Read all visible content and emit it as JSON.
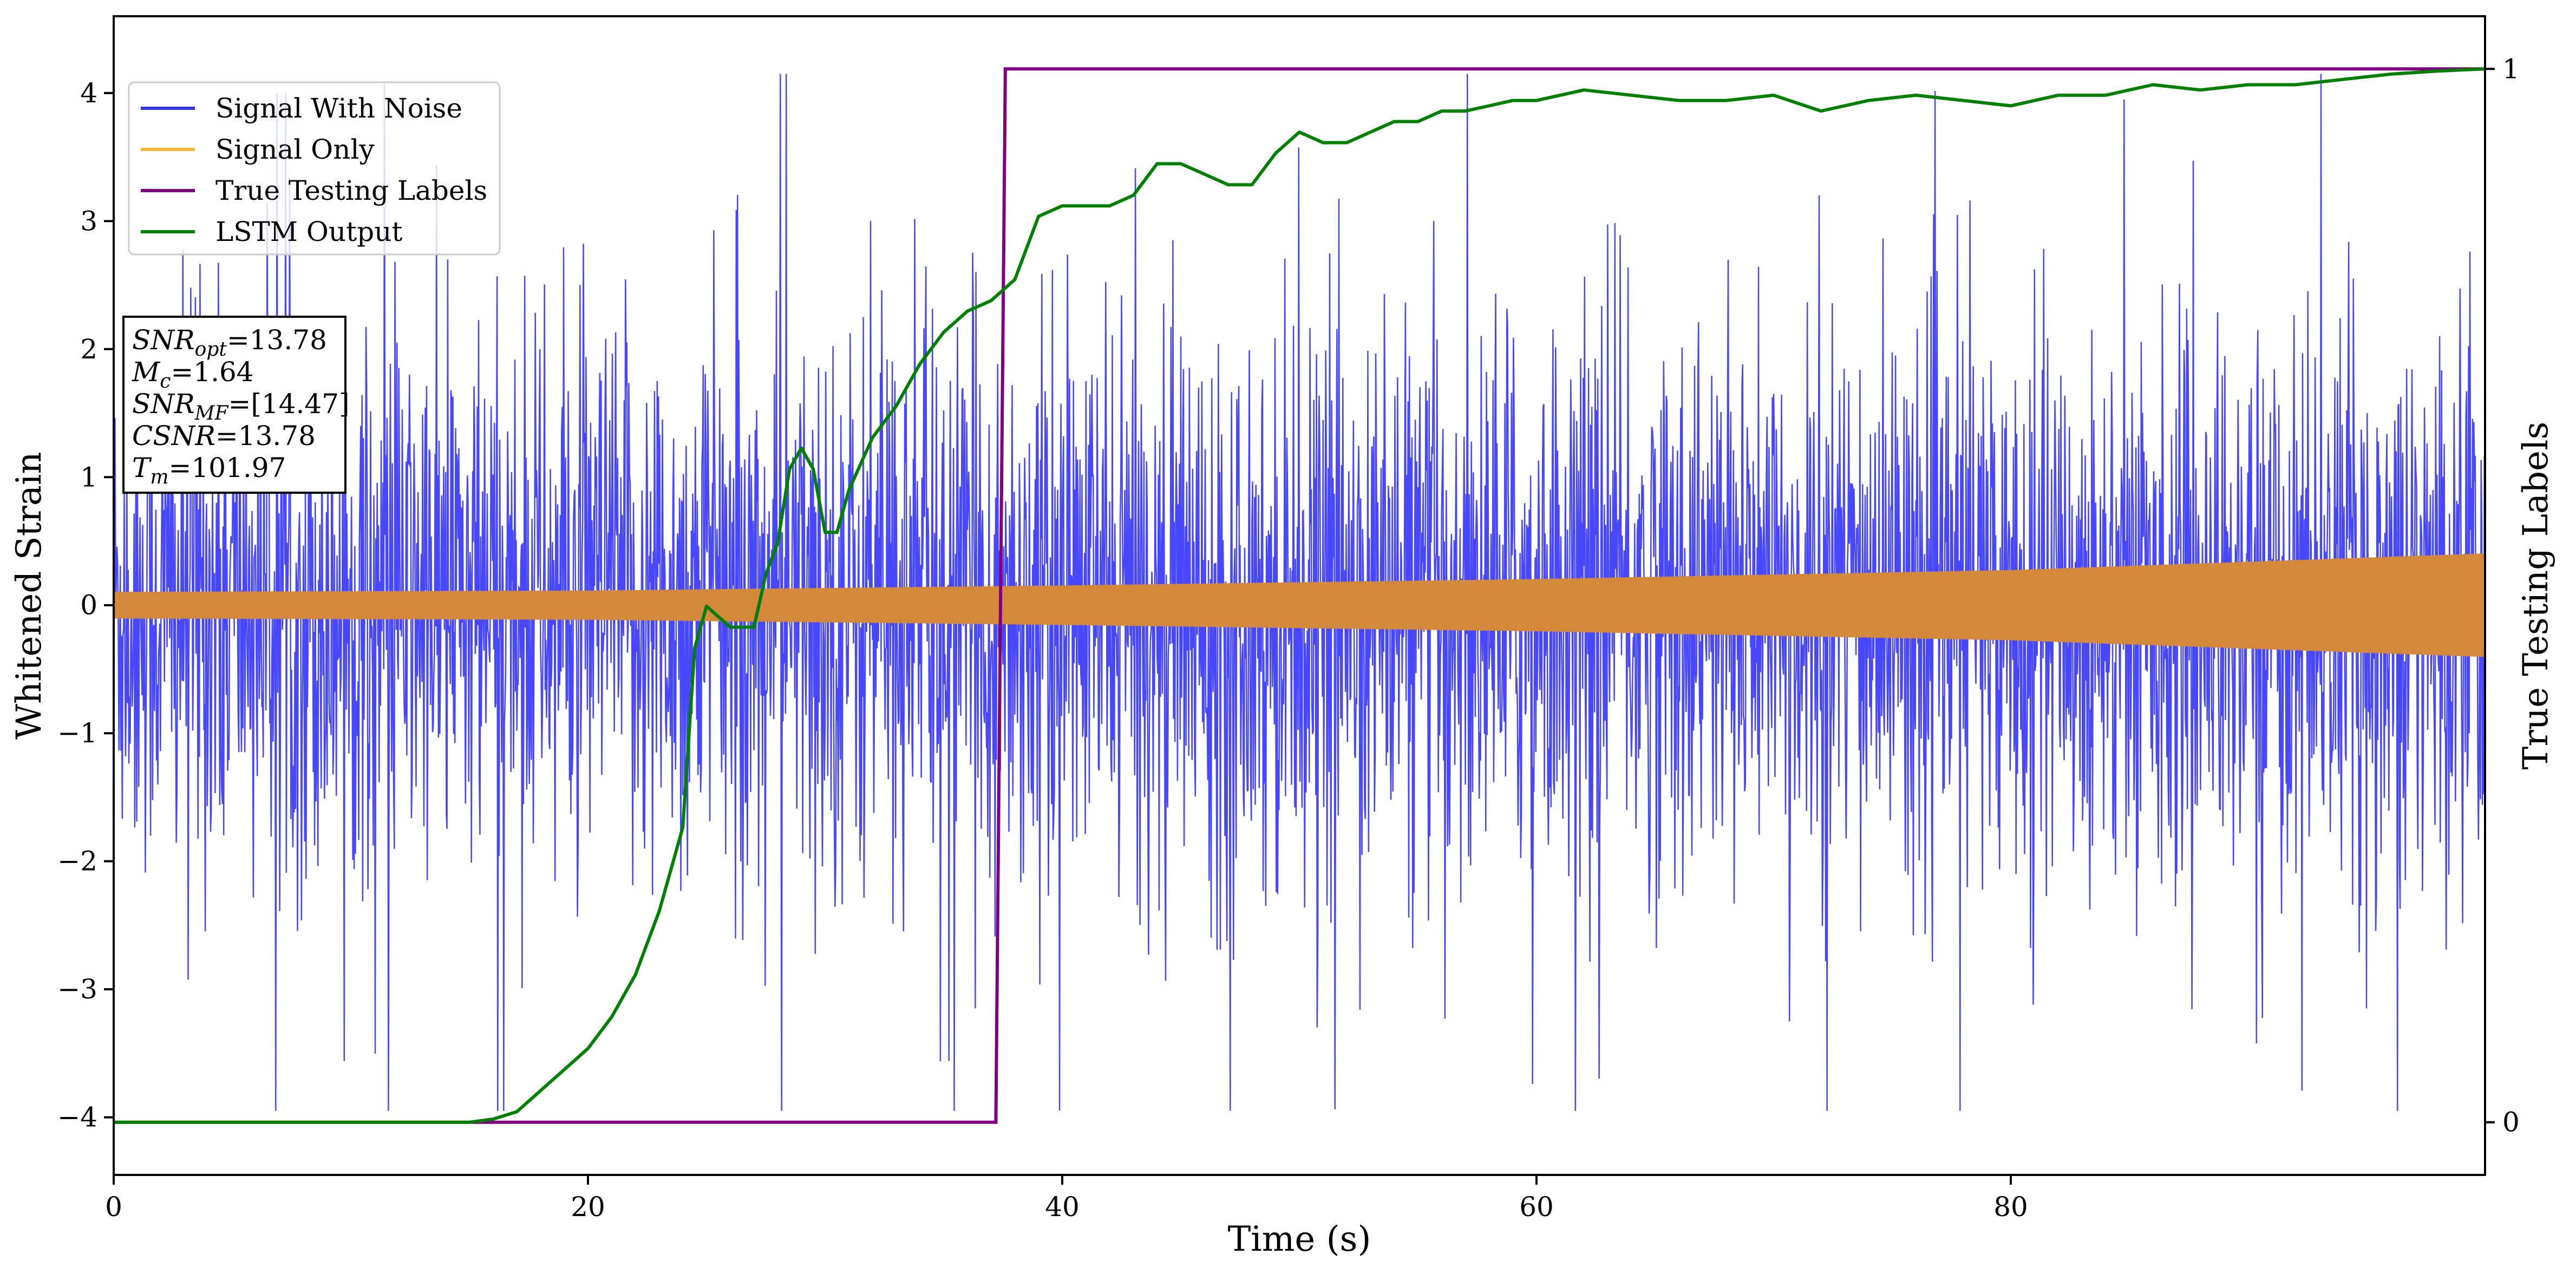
{
  "chart_data": {
    "type": "line",
    "xlabel": "Time (s)",
    "ylabel": "Whitened Strain",
    "y2label": "True Testing Labels",
    "xlim": [
      0,
      100
    ],
    "ylim": [
      -4.45,
      4.6
    ],
    "y2lim": [
      -0.05,
      1.05
    ],
    "xticks": [
      0,
      20,
      40,
      60,
      80
    ],
    "yticks": [
      -4,
      -3,
      -2,
      -1,
      0,
      1,
      2,
      3,
      4
    ],
    "y2ticks": [
      0,
      1
    ],
    "legend_position": "upper-left",
    "grid": false,
    "series": [
      {
        "name": "Signal With Noise",
        "color": "#3333ff",
        "axis": "left",
        "description_stats": {
          "typical_abs": 1.2,
          "max": 4.05,
          "min": -3.8
        }
      },
      {
        "name": "Signal Only",
        "color": "#d4883a",
        "legend_color": "#ffb733",
        "axis": "left",
        "envelope_x": [
          0,
          20,
          40,
          60,
          80,
          100
        ],
        "envelope_amp": [
          0.1,
          0.11,
          0.15,
          0.2,
          0.27,
          0.4
        ]
      },
      {
        "name": "True Testing Labels",
        "color": "#800080",
        "axis": "right",
        "x": [
          0,
          37.2,
          37.6,
          100
        ],
        "y": [
          0,
          0,
          1,
          1
        ]
      },
      {
        "name": "LSTM Output",
        "color": "#008000",
        "axis": "right",
        "x": [
          0,
          15,
          16,
          17,
          18,
          19,
          20,
          21,
          22,
          23,
          24,
          24.5,
          25,
          26,
          27,
          27.5,
          28,
          28.5,
          29,
          29.5,
          30,
          30.5,
          31,
          32,
          33,
          34,
          35,
          36,
          37,
          38,
          39,
          40,
          41,
          42,
          43,
          44,
          45,
          46,
          47,
          48,
          49,
          50,
          51,
          52,
          53,
          54,
          55,
          56,
          57,
          58,
          59,
          60,
          62,
          64,
          66,
          68,
          70,
          72,
          74,
          76,
          78,
          80,
          82,
          84,
          86,
          88,
          90,
          92,
          94,
          96,
          98,
          100
        ],
        "y": [
          0,
          0,
          0.003,
          0.01,
          0.03,
          0.05,
          0.07,
          0.1,
          0.14,
          0.2,
          0.28,
          0.45,
          0.49,
          0.47,
          0.47,
          0.52,
          0.55,
          0.62,
          0.64,
          0.62,
          0.56,
          0.56,
          0.6,
          0.65,
          0.68,
          0.72,
          0.75,
          0.77,
          0.78,
          0.8,
          0.86,
          0.87,
          0.87,
          0.87,
          0.88,
          0.91,
          0.91,
          0.9,
          0.89,
          0.89,
          0.92,
          0.94,
          0.93,
          0.93,
          0.94,
          0.95,
          0.95,
          0.96,
          0.96,
          0.965,
          0.97,
          0.97,
          0.98,
          0.975,
          0.97,
          0.97,
          0.975,
          0.96,
          0.97,
          0.975,
          0.97,
          0.965,
          0.975,
          0.975,
          0.985,
          0.98,
          0.985,
          0.985,
          0.99,
          0.995,
          0.998,
          1.0
        ]
      }
    ],
    "annotation": {
      "lines": [
        {
          "var": "SNR",
          "sub": "opt",
          "value": "=13.78"
        },
        {
          "var": "M",
          "sub": "c",
          "value": "=1.64"
        },
        {
          "var": "SNR",
          "sub": "MF",
          "value": "=[14.47]"
        },
        {
          "var": "CSNR",
          "sub": "",
          "value": "=13.78"
        },
        {
          "var": "T",
          "sub": "m",
          "value": "=101.97"
        }
      ]
    }
  }
}
